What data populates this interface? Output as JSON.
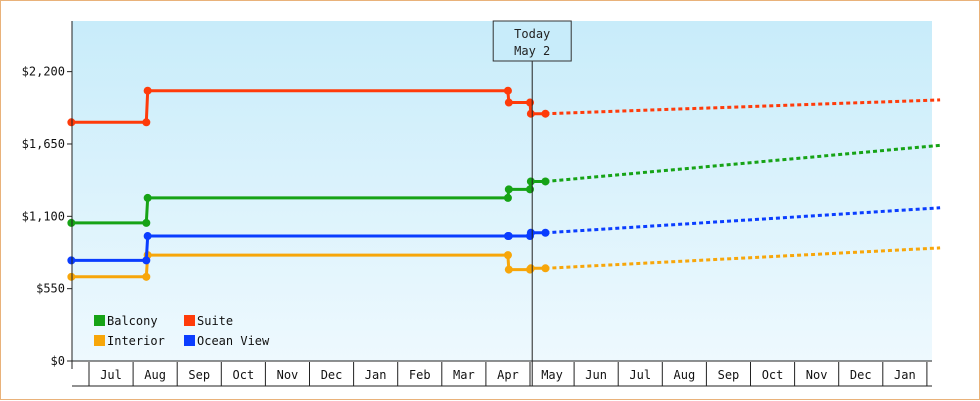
{
  "chart_data": {
    "type": "line",
    "title": "",
    "xlabel": "",
    "ylabel": "",
    "x_tick_labels": [
      "Jul",
      "Aug",
      "Sep",
      "Oct",
      "Nov",
      "Dec",
      "Jan",
      "Feb",
      "Mar",
      "Apr",
      "May",
      "Jun",
      "Jul",
      "Aug",
      "Sep",
      "Oct",
      "Nov",
      "Dec",
      "Jan"
    ],
    "y_ticks": [
      0,
      550,
      1100,
      1650,
      2200
    ],
    "y_tick_labels": [
      "$0",
      "$550",
      "$1,100",
      "$1,650",
      "$2,200"
    ],
    "ylim": [
      0,
      2585
    ],
    "x_unit": "months since start of Jul (left edge of axis)",
    "xlim": [
      -0.4,
      19.3
    ],
    "today": {
      "label_line1": "Today",
      "label_line2": "May 2",
      "x": 10.05
    },
    "legend": {
      "placement": "bottom-left"
    },
    "series": [
      {
        "name": "Balcony",
        "color": "#16a316",
        "historical": [
          [
            -0.4,
            1050
          ],
          [
            1.3,
            1050
          ],
          [
            1.33,
            1240
          ],
          [
            9.5,
            1240
          ],
          [
            9.52,
            1305
          ],
          [
            10.0,
            1305
          ],
          [
            10.02,
            1365
          ],
          [
            10.35,
            1365
          ]
        ],
        "projected": [
          [
            10.35,
            1365
          ],
          [
            19.3,
            1640
          ]
        ]
      },
      {
        "name": "Suite",
        "color": "#ff3b0a",
        "historical": [
          [
            -0.4,
            1815
          ],
          [
            1.3,
            1815
          ],
          [
            1.33,
            2055
          ],
          [
            9.5,
            2055
          ],
          [
            9.52,
            1965
          ],
          [
            10.0,
            1965
          ],
          [
            10.02,
            1880
          ],
          [
            10.35,
            1880
          ]
        ],
        "projected": [
          [
            10.35,
            1880
          ],
          [
            19.3,
            1985
          ]
        ]
      },
      {
        "name": "Interior",
        "color": "#f7a60a",
        "historical": [
          [
            -0.4,
            640
          ],
          [
            1.3,
            640
          ],
          [
            1.33,
            805
          ],
          [
            9.5,
            805
          ],
          [
            9.52,
            695
          ],
          [
            10.0,
            695
          ],
          [
            10.02,
            705
          ],
          [
            10.35,
            705
          ]
        ],
        "projected": [
          [
            10.35,
            705
          ],
          [
            19.3,
            860
          ]
        ]
      },
      {
        "name": "Ocean View",
        "color": "#0a3dff",
        "historical": [
          [
            -0.4,
            765
          ],
          [
            1.3,
            765
          ],
          [
            1.33,
            950
          ],
          [
            9.5,
            950
          ],
          [
            9.52,
            950
          ],
          [
            10.0,
            950
          ],
          [
            10.02,
            975
          ],
          [
            10.35,
            975
          ]
        ],
        "projected": [
          [
            10.35,
            975
          ],
          [
            19.3,
            1165
          ]
        ]
      }
    ],
    "markers_x": [
      -0.4,
      1.3,
      1.33,
      9.5,
      9.52,
      10.0,
      10.02,
      10.35
    ]
  }
}
